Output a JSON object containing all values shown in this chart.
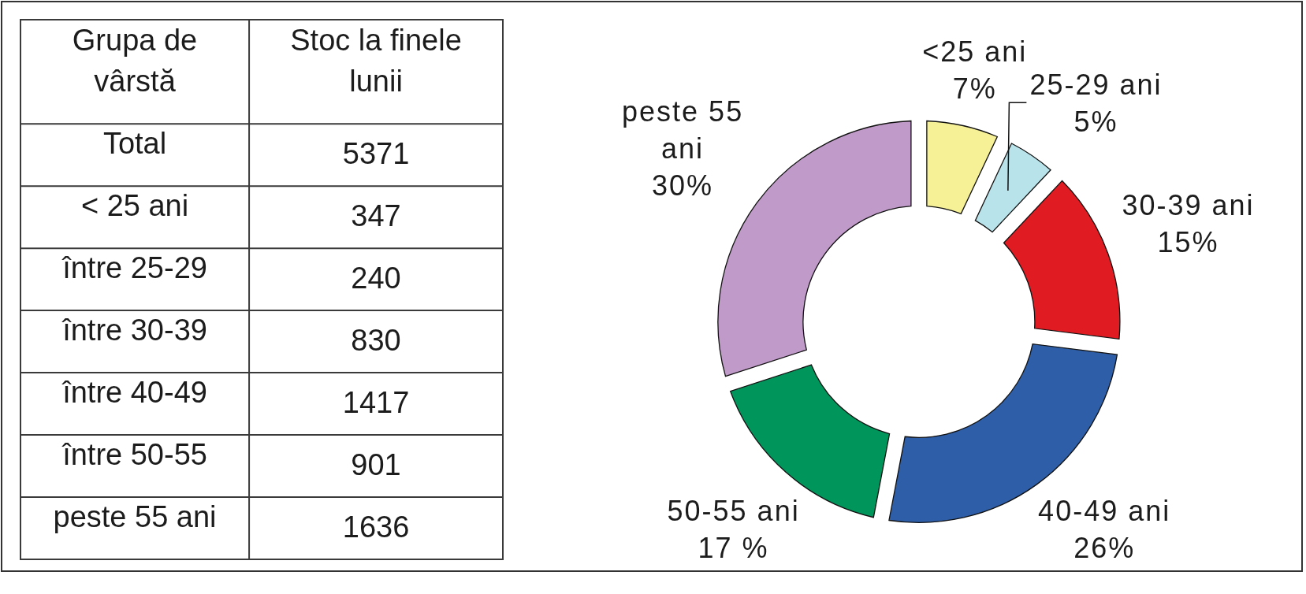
{
  "chart_data": [
    {
      "type": "other",
      "xlabel": "Grupa de vârstă",
      "ylabel": "Stoc la finele lunii",
      "categories": [
        "Total",
        "< 25 ani",
        "între 25-29",
        "între 30-39",
        "între 40-49",
        "între 50-55",
        "peste 55 ani"
      ],
      "values": [
        5371,
        347,
        240,
        830,
        1417,
        901,
        1636
      ],
      "data_labels": true
    },
    {
      "type": "donut",
      "categories": [
        "<25 ani",
        "25-29 ani",
        "30-39 ani",
        "40-49 ani",
        "50-55 ani",
        "peste 55 ani"
      ],
      "values": [
        7,
        5,
        15,
        26,
        17,
        30
      ],
      "colors": [
        "#f6f096",
        "#b9e3ea",
        "#e11b22",
        "#2e5ea8",
        "#00955a",
        "#c09ac8"
      ],
      "value_labels": [
        "7%",
        "5%",
        "15%",
        "26%",
        "17 %",
        "30%"
      ]
    }
  ]
}
